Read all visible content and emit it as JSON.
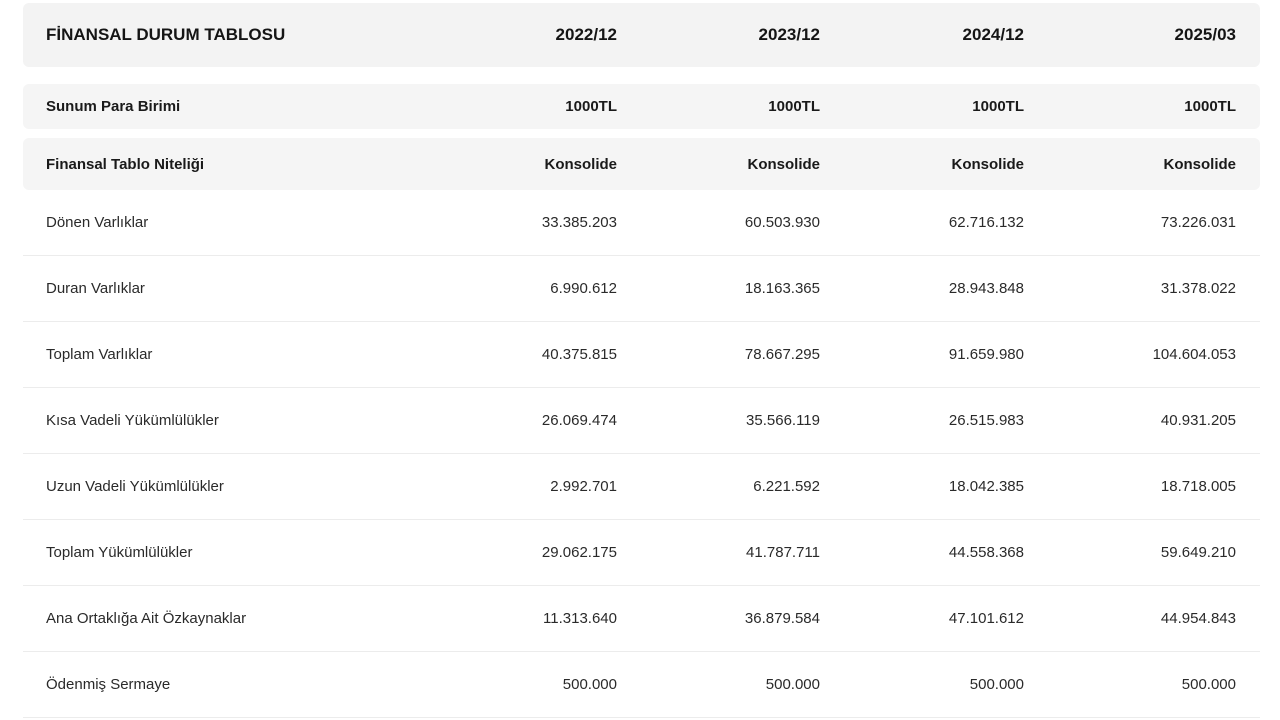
{
  "table": {
    "title": "FİNANSAL DURUM TABLOSU",
    "periods": [
      "2022/12",
      "2023/12",
      "2024/12",
      "2025/03"
    ],
    "meta_rows": [
      {
        "label": "Sunum Para Birimi",
        "values": [
          "1000TL",
          "1000TL",
          "1000TL",
          "1000TL"
        ]
      },
      {
        "label": "Finansal Tablo Niteliği",
        "values": [
          "Konsolide",
          "Konsolide",
          "Konsolide",
          "Konsolide"
        ]
      }
    ],
    "rows": [
      {
        "label": "Dönen Varlıklar",
        "values": [
          "33.385.203",
          "60.503.930",
          "62.716.132",
          "73.226.031"
        ]
      },
      {
        "label": "Duran Varlıklar",
        "values": [
          "6.990.612",
          "18.163.365",
          "28.943.848",
          "31.378.022"
        ]
      },
      {
        "label": "Toplam Varlıklar",
        "values": [
          "40.375.815",
          "78.667.295",
          "91.659.980",
          "104.604.053"
        ]
      },
      {
        "label": "Kısa Vadeli Yükümlülükler",
        "values": [
          "26.069.474",
          "35.566.119",
          "26.515.983",
          "40.931.205"
        ]
      },
      {
        "label": "Uzun Vadeli Yükümlülükler",
        "values": [
          "2.992.701",
          "6.221.592",
          "18.042.385",
          "18.718.005"
        ]
      },
      {
        "label": "Toplam Yükümlülükler",
        "values": [
          "29.062.175",
          "41.787.711",
          "44.558.368",
          "59.649.210"
        ]
      },
      {
        "label": "Ana Ortaklığa Ait Özkaynaklar",
        "values": [
          "11.313.640",
          "36.879.584",
          "47.101.612",
          "44.954.843"
        ]
      },
      {
        "label": "Ödenmiş Sermaye",
        "values": [
          "500.000",
          "500.000",
          "500.000",
          "500.000"
        ]
      }
    ]
  }
}
